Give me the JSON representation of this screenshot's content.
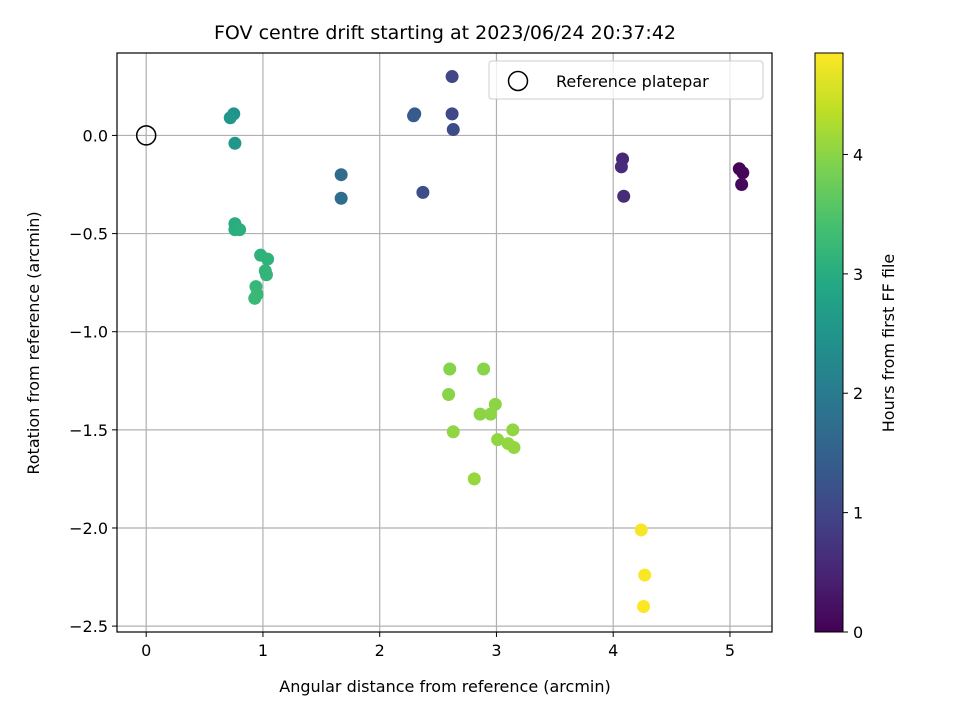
{
  "chart_data": {
    "type": "scatter",
    "title": "FOV centre drift starting at 2023/06/24 20:37:42",
    "xlabel": "Angular distance from reference (arcmin)",
    "ylabel": "Rotation from reference (arcmin)",
    "xlim": [
      -0.25,
      5.36
    ],
    "ylim": [
      -2.53,
      0.42
    ],
    "xticks": [
      0,
      1,
      2,
      3,
      4,
      5
    ],
    "yticks": [
      0.0,
      -0.5,
      -1.0,
      -1.5,
      -2.0,
      -2.5
    ],
    "xtick_labels": [
      "0",
      "1",
      "2",
      "3",
      "4",
      "5"
    ],
    "ytick_labels": [
      "0.0",
      "−0.5",
      "−1.0",
      "−1.5",
      "−2.0",
      "−2.5"
    ],
    "grid": true,
    "legend": {
      "label": "Reference platepar",
      "placement": "upper right"
    },
    "reference_point": {
      "x": 0,
      "y": 0
    },
    "colorbar": {
      "label": "Hours from first FF file",
      "colormap": "viridis",
      "range": [
        0,
        4.85
      ],
      "ticks": [
        0,
        1,
        2,
        3,
        4
      ],
      "tick_labels": [
        "0",
        "1",
        "2",
        "3",
        "4"
      ]
    },
    "points": [
      {
        "x": 5.08,
        "y": -0.17,
        "c": 0.05
      },
      {
        "x": 5.11,
        "y": -0.19,
        "c": 0.08
      },
      {
        "x": 5.1,
        "y": -0.25,
        "c": 0.12
      },
      {
        "x": 4.08,
        "y": -0.12,
        "c": 0.55
      },
      {
        "x": 4.07,
        "y": -0.16,
        "c": 0.58
      },
      {
        "x": 4.09,
        "y": -0.31,
        "c": 0.62
      },
      {
        "x": 2.62,
        "y": 0.3,
        "c": 1.0
      },
      {
        "x": 2.62,
        "y": 0.11,
        "c": 1.05
      },
      {
        "x": 2.63,
        "y": 0.03,
        "c": 1.1
      },
      {
        "x": 2.37,
        "y": -0.29,
        "c": 1.15
      },
      {
        "x": 2.3,
        "y": 0.11,
        "c": 1.35
      },
      {
        "x": 2.29,
        "y": 0.1,
        "c": 1.38
      },
      {
        "x": 1.67,
        "y": -0.2,
        "c": 1.7
      },
      {
        "x": 1.67,
        "y": -0.32,
        "c": 1.72
      },
      {
        "x": 0.75,
        "y": 0.11,
        "c": 2.5
      },
      {
        "x": 0.72,
        "y": 0.09,
        "c": 2.52
      },
      {
        "x": 0.76,
        "y": -0.04,
        "c": 2.55
      },
      {
        "x": 0.76,
        "y": -0.45,
        "c": 3.0
      },
      {
        "x": 0.76,
        "y": -0.48,
        "c": 3.02
      },
      {
        "x": 0.8,
        "y": -0.48,
        "c": 3.05
      },
      {
        "x": 0.98,
        "y": -0.61,
        "c": 3.1
      },
      {
        "x": 1.04,
        "y": -0.63,
        "c": 3.12
      },
      {
        "x": 1.02,
        "y": -0.69,
        "c": 3.15
      },
      {
        "x": 1.03,
        "y": -0.71,
        "c": 3.17
      },
      {
        "x": 0.94,
        "y": -0.77,
        "c": 3.2
      },
      {
        "x": 0.95,
        "y": -0.81,
        "c": 3.22
      },
      {
        "x": 0.93,
        "y": -0.83,
        "c": 3.25
      },
      {
        "x": 2.6,
        "y": -1.19,
        "c": 3.95
      },
      {
        "x": 2.89,
        "y": -1.19,
        "c": 3.97
      },
      {
        "x": 2.59,
        "y": -1.32,
        "c": 3.98
      },
      {
        "x": 2.99,
        "y": -1.37,
        "c": 4.0
      },
      {
        "x": 2.86,
        "y": -1.42,
        "c": 4.0
      },
      {
        "x": 2.95,
        "y": -1.42,
        "c": 4.02
      },
      {
        "x": 2.63,
        "y": -1.51,
        "c": 4.03
      },
      {
        "x": 3.14,
        "y": -1.5,
        "c": 4.05
      },
      {
        "x": 3.01,
        "y": -1.55,
        "c": 4.05
      },
      {
        "x": 3.1,
        "y": -1.57,
        "c": 4.06
      },
      {
        "x": 3.15,
        "y": -1.59,
        "c": 4.07
      },
      {
        "x": 2.81,
        "y": -1.75,
        "c": 4.08
      },
      {
        "x": 4.24,
        "y": -2.01,
        "c": 4.8
      },
      {
        "x": 4.27,
        "y": -2.24,
        "c": 4.82
      },
      {
        "x": 4.26,
        "y": -2.4,
        "c": 4.85
      }
    ]
  }
}
